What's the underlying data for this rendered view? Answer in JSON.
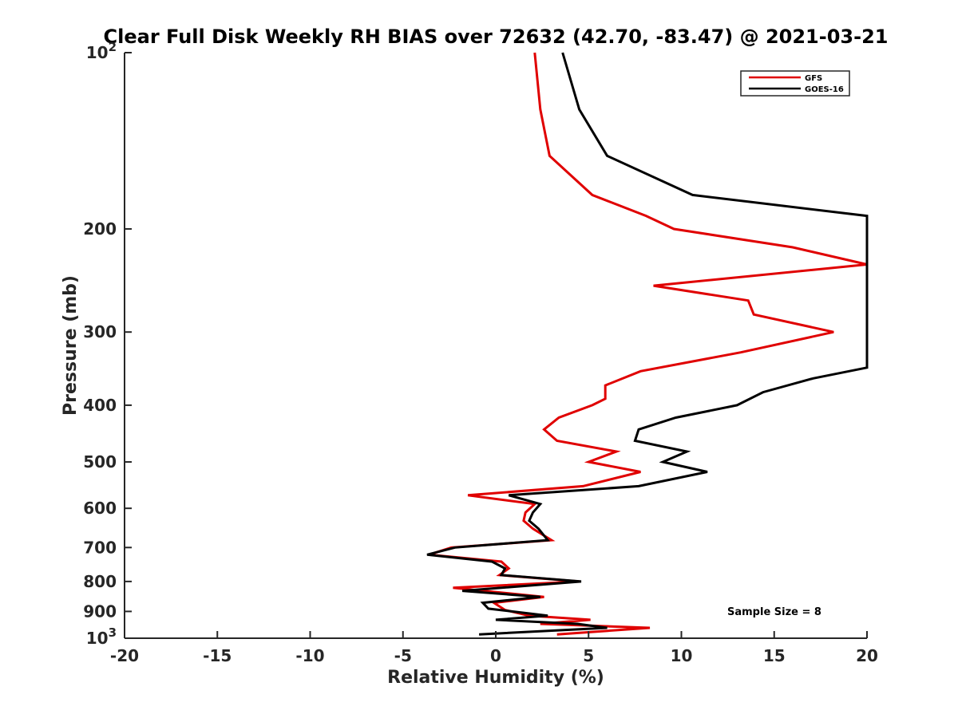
{
  "chart_data": {
    "type": "line",
    "title": "Clear Full Disk Weekly RH BIAS over 72632 (42.70, -83.47) @ 2021-03-21",
    "xlabel": "Relative Humidity (%)",
    "ylabel": "Pressure (mb)",
    "xlim": [
      -20,
      20
    ],
    "ylim": [
      100,
      1000
    ],
    "y_scale": "log",
    "y_reversed": true,
    "grid": false,
    "legend_position": "top-right",
    "x_ticks": [
      "-20",
      "-15",
      "-10",
      "-5",
      "0",
      "5",
      "10",
      "15",
      "20"
    ],
    "y_ticks": [
      {
        "value": 100,
        "base": "10",
        "exp": "2"
      },
      {
        "value": 200,
        "label": "200"
      },
      {
        "value": 300,
        "label": "300"
      },
      {
        "value": 400,
        "label": "400"
      },
      {
        "value": 500,
        "label": "500"
      },
      {
        "value": 600,
        "label": "600"
      },
      {
        "value": 700,
        "label": "700"
      },
      {
        "value": 800,
        "label": "800"
      },
      {
        "value": 900,
        "label": "900"
      },
      {
        "value": 1000,
        "base": "10",
        "exp": "3"
      }
    ],
    "series": [
      {
        "name": "GFS",
        "color": "#e00000",
        "points": [
          [
            2.1,
            100
          ],
          [
            2.4,
            125
          ],
          [
            2.9,
            150
          ],
          [
            5.2,
            175
          ],
          [
            8.1,
            190
          ],
          [
            9.6,
            200
          ],
          [
            16.0,
            215
          ],
          [
            20.0,
            230
          ],
          [
            8.5,
            250
          ],
          [
            13.6,
            265
          ],
          [
            13.9,
            280
          ],
          [
            18.2,
            300
          ],
          [
            13.2,
            325
          ],
          [
            7.8,
            350
          ],
          [
            5.9,
            370
          ],
          [
            5.9,
            390
          ],
          [
            5.2,
            400
          ],
          [
            3.4,
            420
          ],
          [
            2.6,
            440
          ],
          [
            3.3,
            460
          ],
          [
            6.5,
            480
          ],
          [
            5.0,
            500
          ],
          [
            7.8,
            520
          ],
          [
            4.7,
            550
          ],
          [
            -1.5,
            570
          ],
          [
            2.1,
            590
          ],
          [
            1.6,
            610
          ],
          [
            1.5,
            630
          ],
          [
            2.0,
            650
          ],
          [
            3.0,
            680
          ],
          [
            -2.4,
            700
          ],
          [
            -3.6,
            720
          ],
          [
            0.3,
            740
          ],
          [
            0.7,
            760
          ],
          [
            0.2,
            780
          ],
          [
            4.5,
            800
          ],
          [
            -2.3,
            820
          ],
          [
            2.6,
            850
          ],
          [
            -0.1,
            870
          ],
          [
            0.5,
            895
          ],
          [
            1.8,
            915
          ],
          [
            5.1,
            930
          ],
          [
            2.4,
            945
          ],
          [
            8.3,
            960
          ],
          [
            3.3,
            985
          ]
        ]
      },
      {
        "name": "GOES-16",
        "color": "#000000",
        "points": [
          [
            3.6,
            100
          ],
          [
            4.5,
            125
          ],
          [
            6.0,
            150
          ],
          [
            10.6,
            175
          ],
          [
            20.0,
            190
          ],
          [
            20.0,
            345
          ],
          [
            17.1,
            360
          ],
          [
            14.4,
            380
          ],
          [
            13.0,
            400
          ],
          [
            9.7,
            420
          ],
          [
            7.7,
            440
          ],
          [
            7.5,
            460
          ],
          [
            10.3,
            480
          ],
          [
            9.0,
            500
          ],
          [
            11.4,
            520
          ],
          [
            7.7,
            550
          ],
          [
            0.7,
            570
          ],
          [
            2.4,
            590
          ],
          [
            2.0,
            610
          ],
          [
            1.8,
            630
          ],
          [
            2.3,
            650
          ],
          [
            2.8,
            680
          ],
          [
            -2.2,
            700
          ],
          [
            -3.7,
            720
          ],
          [
            -0.2,
            740
          ],
          [
            0.5,
            760
          ],
          [
            0.3,
            780
          ],
          [
            4.6,
            800
          ],
          [
            -1.8,
            830
          ],
          [
            2.4,
            850
          ],
          [
            -0.7,
            870
          ],
          [
            -0.4,
            890
          ],
          [
            2.8,
            915
          ],
          [
            0.0,
            930
          ],
          [
            4.4,
            945
          ],
          [
            6.0,
            960
          ],
          [
            -0.9,
            985
          ]
        ]
      }
    ],
    "annotations": [
      "Sample Size = 8"
    ]
  }
}
